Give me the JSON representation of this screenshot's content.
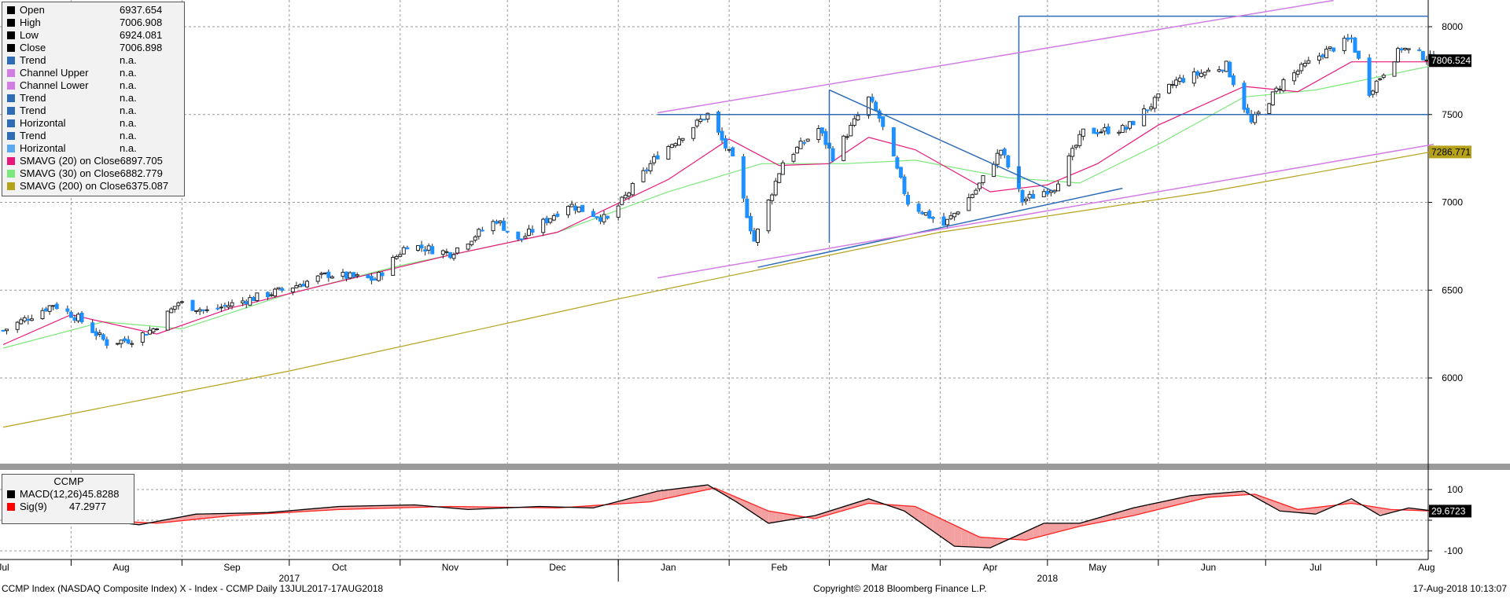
{
  "chart_data": [
    {
      "type": "candlestick",
      "ticker": "CCMP",
      "ylim": [
        5700,
        8100
      ],
      "yticks": [
        6000,
        6500,
        7000,
        7500,
        8000
      ],
      "ytick_labels": [
        "6000",
        "6500",
        "7000",
        "7500",
        "8000"
      ],
      "x_start": "2017-07-13",
      "x_end": "2018-08-17",
      "month_labels": [
        {
          "date": "2017-07-13",
          "label": "Jul"
        },
        {
          "date": "2017-08-15",
          "label": "Aug"
        },
        {
          "date": "2017-09-15",
          "label": "Sep"
        },
        {
          "date": "2017-10-15",
          "label": "Oct"
        },
        {
          "date": "2017-11-15",
          "label": "Nov"
        },
        {
          "date": "2017-12-15",
          "label": "Dec"
        },
        {
          "date": "2018-01-15",
          "label": "Jan"
        },
        {
          "date": "2018-02-15",
          "label": "Feb"
        },
        {
          "date": "2018-03-15",
          "label": "Mar"
        },
        {
          "date": "2018-04-15",
          "label": "Apr"
        },
        {
          "date": "2018-05-15",
          "label": "May"
        },
        {
          "date": "2018-06-15",
          "label": "Jun"
        },
        {
          "date": "2018-07-15",
          "label": "Jul"
        },
        {
          "date": "2018-08-15",
          "label": "Aug"
        }
      ],
      "year_labels": [
        {
          "date": "2017-10-01",
          "label": "2017"
        },
        {
          "date": "2018-05-01",
          "label": "2018"
        }
      ],
      "colors": {
        "up": "#1f1f1f",
        "down": "#1e90ff",
        "sma20": "#e8177a",
        "sma30": "#7ce87c",
        "sma200": "#b5a21a",
        "trend": "#2e6db5",
        "channel": "#d27de3",
        "horizontal": "#2e7bd8"
      },
      "close_keypoints": [
        {
          "date": "2017-07-13",
          "close": 6270
        },
        {
          "date": "2017-07-27",
          "close": 6420
        },
        {
          "date": "2017-08-03",
          "close": 6340
        },
        {
          "date": "2017-08-11",
          "close": 6200
        },
        {
          "date": "2017-08-18",
          "close": 6220
        },
        {
          "date": "2017-08-24",
          "close": 6280
        },
        {
          "date": "2017-08-31",
          "close": 6430
        },
        {
          "date": "2017-09-08",
          "close": 6380
        },
        {
          "date": "2017-09-20",
          "close": 6450
        },
        {
          "date": "2017-09-29",
          "close": 6500
        },
        {
          "date": "2017-10-12",
          "close": 6590
        },
        {
          "date": "2017-10-25",
          "close": 6560
        },
        {
          "date": "2017-11-03",
          "close": 6760
        },
        {
          "date": "2017-11-15",
          "close": 6710
        },
        {
          "date": "2017-11-28",
          "close": 6900
        },
        {
          "date": "2017-12-04",
          "close": 6780
        },
        {
          "date": "2017-12-18",
          "close": 6990
        },
        {
          "date": "2017-12-29",
          "close": 6900
        },
        {
          "date": "2018-01-12",
          "close": 7270
        },
        {
          "date": "2018-01-26",
          "close": 7500
        },
        {
          "date": "2018-02-02",
          "close": 7240
        },
        {
          "date": "2018-02-08",
          "close": 6780
        },
        {
          "date": "2018-02-16",
          "close": 7230
        },
        {
          "date": "2018-02-26",
          "close": 7420
        },
        {
          "date": "2018-03-02",
          "close": 7260
        },
        {
          "date": "2018-03-12",
          "close": 7590
        },
        {
          "date": "2018-03-15",
          "close": 7480
        },
        {
          "date": "2018-03-23",
          "close": 7000
        },
        {
          "date": "2018-04-02",
          "close": 6870
        },
        {
          "date": "2018-04-11",
          "close": 7070
        },
        {
          "date": "2018-04-18",
          "close": 7300
        },
        {
          "date": "2018-04-24",
          "close": 7010
        },
        {
          "date": "2018-05-03",
          "close": 7090
        },
        {
          "date": "2018-05-11",
          "close": 7400
        },
        {
          "date": "2018-05-23",
          "close": 7420
        },
        {
          "date": "2018-06-06",
          "close": 7690
        },
        {
          "date": "2018-06-20",
          "close": 7780
        },
        {
          "date": "2018-06-27",
          "close": 7450
        },
        {
          "date": "2018-07-06",
          "close": 7690
        },
        {
          "date": "2018-07-17",
          "close": 7850
        },
        {
          "date": "2018-07-25",
          "close": 7930
        },
        {
          "date": "2018-07-30",
          "close": 7630
        },
        {
          "date": "2018-08-08",
          "close": 7880
        },
        {
          "date": "2018-08-17",
          "close": 7810
        }
      ],
      "sma20_keypoints": [
        {
          "date": "2017-07-13",
          "value": 6190
        },
        {
          "date": "2017-08-01",
          "value": 6360
        },
        {
          "date": "2017-08-25",
          "value": 6250
        },
        {
          "date": "2017-09-15",
          "value": 6400
        },
        {
          "date": "2017-10-15",
          "value": 6550
        },
        {
          "date": "2017-11-15",
          "value": 6700
        },
        {
          "date": "2017-12-15",
          "value": 6830
        },
        {
          "date": "2018-01-15",
          "value": 7130
        },
        {
          "date": "2018-02-01",
          "value": 7360
        },
        {
          "date": "2018-02-15",
          "value": 7210
        },
        {
          "date": "2018-03-01",
          "value": 7220
        },
        {
          "date": "2018-03-12",
          "value": 7370
        },
        {
          "date": "2018-03-25",
          "value": 7300
        },
        {
          "date": "2018-04-15",
          "value": 7060
        },
        {
          "date": "2018-05-01",
          "value": 7100
        },
        {
          "date": "2018-05-15",
          "value": 7220
        },
        {
          "date": "2018-06-01",
          "value": 7440
        },
        {
          "date": "2018-06-25",
          "value": 7660
        },
        {
          "date": "2018-07-10",
          "value": 7630
        },
        {
          "date": "2018-07-25",
          "value": 7800
        },
        {
          "date": "2018-08-17",
          "value": 7800
        }
      ],
      "sma30_keypoints": [
        {
          "date": "2017-07-13",
          "value": 6170
        },
        {
          "date": "2017-08-10",
          "value": 6320
        },
        {
          "date": "2017-09-01",
          "value": 6280
        },
        {
          "date": "2017-10-01",
          "value": 6480
        },
        {
          "date": "2017-11-01",
          "value": 6640
        },
        {
          "date": "2017-12-15",
          "value": 6830
        },
        {
          "date": "2018-01-15",
          "value": 7060
        },
        {
          "date": "2018-02-10",
          "value": 7220
        },
        {
          "date": "2018-03-05",
          "value": 7220
        },
        {
          "date": "2018-03-25",
          "value": 7240
        },
        {
          "date": "2018-04-20",
          "value": 7140
        },
        {
          "date": "2018-05-10",
          "value": 7110
        },
        {
          "date": "2018-06-01",
          "value": 7330
        },
        {
          "date": "2018-06-25",
          "value": 7600
        },
        {
          "date": "2018-07-15",
          "value": 7640
        },
        {
          "date": "2018-08-17",
          "value": 7780
        }
      ],
      "sma200_keypoints": [
        {
          "date": "2017-07-13",
          "value": 5720
        },
        {
          "date": "2017-10-01",
          "value": 6040
        },
        {
          "date": "2018-01-01",
          "value": 6450
        },
        {
          "date": "2018-04-01",
          "value": 6830
        },
        {
          "date": "2018-06-15",
          "value": 7060
        },
        {
          "date": "2018-08-17",
          "value": 7290
        }
      ],
      "drawings": [
        {
          "type": "trend",
          "points": [
            {
              "date": "2018-02-09",
              "value": 6630
            },
            {
              "date": "2018-05-22",
              "value": 7080
            }
          ]
        },
        {
          "type": "trend",
          "points": [
            {
              "date": "2018-03-01",
              "value": 7640
            },
            {
              "date": "2018-05-03",
              "value": 7060
            }
          ]
        },
        {
          "type": "trend",
          "points": [
            {
              "date": "2018-03-01",
              "value": 7640
            },
            {
              "date": "2018-03-01",
              "value": 6770
            }
          ]
        },
        {
          "type": "horizontal",
          "value": 7500
        },
        {
          "type": "horizontal",
          "value": 8060,
          "from": "2018-04-23"
        },
        {
          "type": "trend",
          "points": [
            {
              "date": "2018-04-23",
              "value": 7110
            },
            {
              "date": "2018-04-23",
              "value": 8060
            }
          ]
        },
        {
          "type": "channel_upper",
          "points": [
            {
              "date": "2018-01-12",
              "value": 7510
            },
            {
              "date": "2018-07-20",
              "value": 8150
            }
          ]
        },
        {
          "type": "channel_lower",
          "points": [
            {
              "date": "2018-01-12",
              "value": 6570
            },
            {
              "date": "2018-08-17",
              "value": 7330
            }
          ]
        }
      ],
      "price_labels": [
        {
          "value": 7806.524,
          "text": "7806.524",
          "bg": "#000000",
          "fg": "#ffffff"
        },
        {
          "value": 7286.771,
          "text": "7286.771",
          "bg": "#b5a21a",
          "fg": "#000000"
        }
      ],
      "legend": {
        "rows": [
          {
            "label": "Open",
            "value": "6937.654",
            "color": "#000000"
          },
          {
            "label": "High",
            "value": "7006.908",
            "color": "#000000"
          },
          {
            "label": "Low",
            "value": "6924.081",
            "color": "#000000"
          },
          {
            "label": "Close",
            "value": "7006.898",
            "color": "#000000"
          },
          {
            "label": "Trend",
            "value": "n.a.",
            "color": "#2e6db5"
          },
          {
            "label": "Channel Upper",
            "value": "n.a.",
            "color": "#d27de3"
          },
          {
            "label": "Channel Lower",
            "value": "n.a.",
            "color": "#d27de3"
          },
          {
            "label": "Trend",
            "value": "n.a.",
            "color": "#2e6db5"
          },
          {
            "label": "Trend",
            "value": "n.a.",
            "color": "#2e6db5"
          },
          {
            "label": "Horizontal",
            "value": "n.a.",
            "color": "#2e6db5"
          },
          {
            "label": "Trend",
            "value": "n.a.",
            "color": "#2e6db5"
          },
          {
            "label": "Horizontal",
            "value": "n.a.",
            "color": "#5aa8f0"
          },
          {
            "label": "SMAVG (20) on Close",
            "value": "6897.705",
            "color": "#e8177a"
          },
          {
            "label": "SMAVG (30) on Close",
            "value": "6882.779",
            "color": "#7ce87c"
          },
          {
            "label": "SMAVG (200) on Close",
            "value": "6375.087",
            "color": "#b5a21a"
          }
        ]
      }
    },
    {
      "type": "macd",
      "ylim": [
        -110,
        140
      ],
      "yticks": [
        100,
        0,
        -100
      ],
      "ytick_labels": [
        "100",
        "",
        "-100"
      ],
      "macd_keypoints": [
        {
          "date": "2017-07-13",
          "value": 20
        },
        {
          "date": "2017-07-25",
          "value": 30
        },
        {
          "date": "2017-08-05",
          "value": 5
        },
        {
          "date": "2017-08-20",
          "value": -15
        },
        {
          "date": "2017-09-05",
          "value": 20
        },
        {
          "date": "2017-09-25",
          "value": 25
        },
        {
          "date": "2017-10-15",
          "value": 45
        },
        {
          "date": "2017-11-05",
          "value": 50
        },
        {
          "date": "2017-11-20",
          "value": 35
        },
        {
          "date": "2017-12-10",
          "value": 45
        },
        {
          "date": "2017-12-25",
          "value": 40
        },
        {
          "date": "2018-01-12",
          "value": 95
        },
        {
          "date": "2018-01-26",
          "value": 115
        },
        {
          "date": "2018-02-03",
          "value": 60
        },
        {
          "date": "2018-02-12",
          "value": -10
        },
        {
          "date": "2018-02-25",
          "value": 15
        },
        {
          "date": "2018-03-12",
          "value": 70
        },
        {
          "date": "2018-03-22",
          "value": 30
        },
        {
          "date": "2018-04-05",
          "value": -85
        },
        {
          "date": "2018-04-15",
          "value": -90
        },
        {
          "date": "2018-04-30",
          "value": -10
        },
        {
          "date": "2018-05-10",
          "value": -10
        },
        {
          "date": "2018-05-25",
          "value": 40
        },
        {
          "date": "2018-06-10",
          "value": 80
        },
        {
          "date": "2018-06-25",
          "value": 95
        },
        {
          "date": "2018-07-05",
          "value": 30
        },
        {
          "date": "2018-07-15",
          "value": 20
        },
        {
          "date": "2018-07-25",
          "value": 70
        },
        {
          "date": "2018-08-02",
          "value": 15
        },
        {
          "date": "2018-08-10",
          "value": 40
        },
        {
          "date": "2018-08-17",
          "value": 30
        }
      ],
      "signal_keypoints": [
        {
          "date": "2017-07-13",
          "value": 30
        },
        {
          "date": "2017-08-10",
          "value": 0
        },
        {
          "date": "2017-08-25",
          "value": -10
        },
        {
          "date": "2017-09-15",
          "value": 15
        },
        {
          "date": "2017-10-15",
          "value": 35
        },
        {
          "date": "2017-11-15",
          "value": 45
        },
        {
          "date": "2017-12-15",
          "value": 40
        },
        {
          "date": "2018-01-10",
          "value": 60
        },
        {
          "date": "2018-01-28",
          "value": 105
        },
        {
          "date": "2018-02-12",
          "value": 30
        },
        {
          "date": "2018-02-25",
          "value": 5
        },
        {
          "date": "2018-03-12",
          "value": 55
        },
        {
          "date": "2018-03-25",
          "value": 45
        },
        {
          "date": "2018-04-12",
          "value": -55
        },
        {
          "date": "2018-04-25",
          "value": -65
        },
        {
          "date": "2018-05-10",
          "value": -20
        },
        {
          "date": "2018-05-25",
          "value": 15
        },
        {
          "date": "2018-06-15",
          "value": 75
        },
        {
          "date": "2018-06-28",
          "value": 85
        },
        {
          "date": "2018-07-10",
          "value": 35
        },
        {
          "date": "2018-07-25",
          "value": 55
        },
        {
          "date": "2018-08-05",
          "value": 35
        },
        {
          "date": "2018-08-17",
          "value": 30
        }
      ],
      "price_labels": [
        {
          "value": 29.6723,
          "text": "29.6723",
          "bg": "#000000",
          "fg": "#ffffff"
        }
      ],
      "legend": {
        "title": "CCMP",
        "rows": [
          {
            "label": "MACD(12,26)",
            "value": "45.8288",
            "color": "#000000"
          },
          {
            "label": "Sig(9)",
            "value": "47.2977",
            "color": "#ff0000"
          }
        ]
      },
      "colors": {
        "macd": "#000000",
        "signal": "#ff2020",
        "fill": "#f2a0a0"
      }
    }
  ],
  "footer": {
    "left": "CCMP Index (NASDAQ Composite Index) X - Index - CCMP  Daily 13JUL2017-17AUG2018",
    "center": "Copyright© 2018 Bloomberg Finance L.P.",
    "right": "17-Aug-2018 10:13:07"
  }
}
